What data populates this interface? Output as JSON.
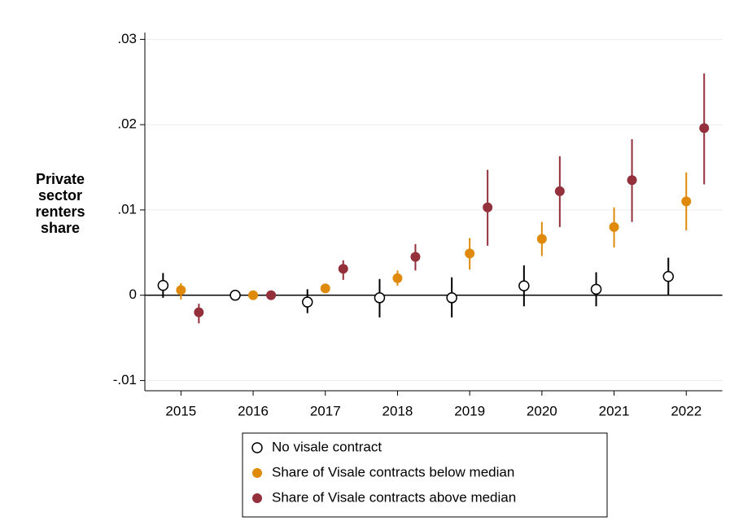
{
  "chart_data": {
    "type": "errorbar-scatter",
    "y_label": "Private sector renters share",
    "categories": [
      "2015",
      "2016",
      "2017",
      "2018",
      "2019",
      "2020",
      "2021",
      "2022"
    ],
    "ylim": [
      -0.0112,
      0.0308
    ],
    "yticks": [
      {
        "value": -0.01,
        "label": "-.01"
      },
      0,
      {
        "value": 0.01,
        "label": ".01"
      },
      {
        "value": 0.02,
        "label": ".02"
      },
      {
        "value": 0.03,
        "label": ".03"
      }
    ],
    "grid": true,
    "reference_line": 0,
    "legend_position": "bottom",
    "series": [
      {
        "name": "No visale contract",
        "color": "#000000",
        "hollow": true,
        "values": [
          0.00115,
          0,
          -0.0008,
          -0.0003,
          -0.0003,
          0.0011,
          0.0007,
          0.0022
        ],
        "lo": [
          -0.0003,
          null,
          -0.0021,
          -0.0026,
          -0.0026,
          -0.0013,
          -0.0013,
          0
        ],
        "hi": [
          0.0026,
          null,
          0.0007,
          0.0019,
          0.0021,
          0.0035,
          0.0027,
          0.0044
        ]
      },
      {
        "name": "Share of Visale contracts below median",
        "color": "#e08a0b",
        "hollow": false,
        "values": [
          0.0006,
          0,
          0.0008,
          0.002,
          0.0049,
          0.0066,
          0.008,
          0.011
        ],
        "lo": [
          -0.0005,
          null,
          0.0005,
          0.0011,
          0.003,
          0.0046,
          0.0056,
          0.0076
        ],
        "hi": [
          0.0014,
          null,
          0.0011,
          0.0029,
          0.0067,
          0.0086,
          0.0103,
          0.0144
        ]
      },
      {
        "name": "Share of Visale contracts above median",
        "color": "#93303b",
        "hollow": false,
        "values": [
          -0.002,
          0,
          0.0031,
          0.0045,
          0.0103,
          0.0122,
          0.0135,
          0.0196
        ],
        "lo": [
          -0.0033,
          null,
          0.0018,
          0.0029,
          0.0058,
          0.008,
          0.0086,
          0.013
        ],
        "hi": [
          -0.001,
          null,
          0.0041,
          0.006,
          0.0147,
          0.0163,
          0.0183,
          0.026
        ]
      }
    ]
  }
}
